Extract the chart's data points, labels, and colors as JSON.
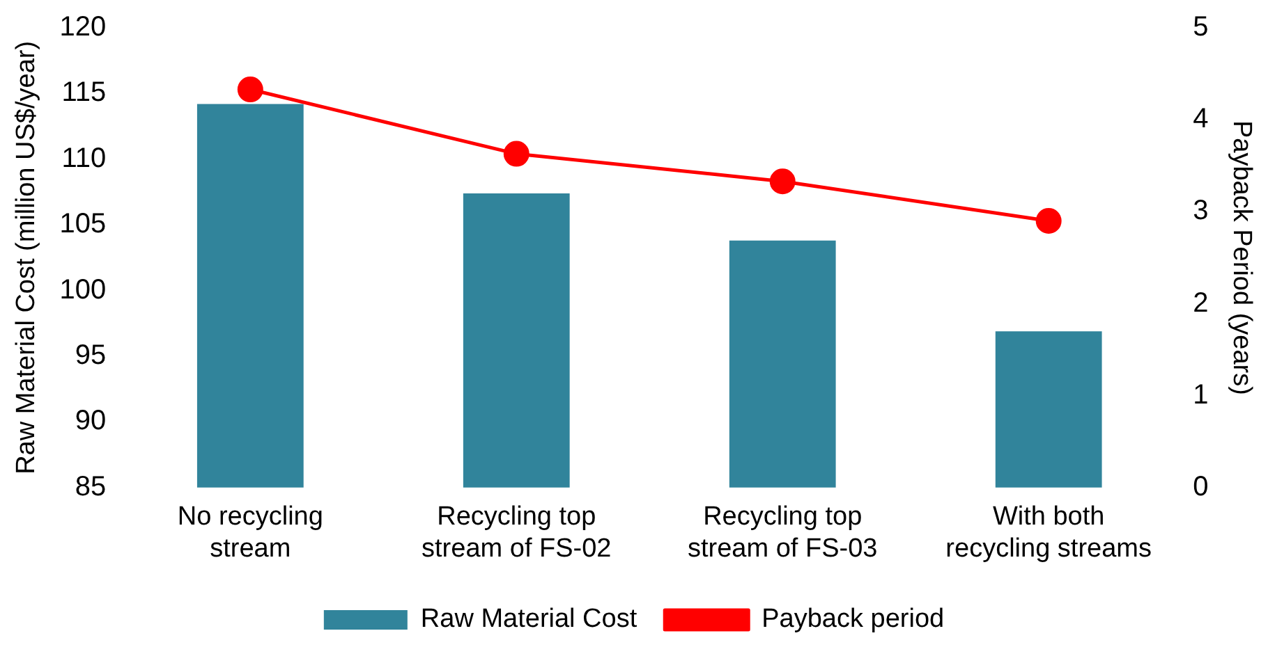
{
  "chart_data": {
    "type": "bar",
    "categories": [
      "No recycling\nstream",
      "Recycling top\nstream of FS-02",
      "Recycling top\nstream of FS-03",
      "With both\nrecycling streams"
    ],
    "series": [
      {
        "name": "Raw Material Cost",
        "color": "#31849b",
        "values": [
          114.2,
          107.4,
          103.8,
          96.9
        ]
      },
      {
        "name": "Payback period",
        "type": "line",
        "axis": "y2",
        "color": "#ff0000",
        "values": [
          4.33,
          3.63,
          3.33,
          2.9
        ]
      }
    ],
    "ylabel": "Raw Material Cost (million US$/year)",
    "y2label": "Payback Period (years)",
    "ylim": [
      85,
      120
    ],
    "yticks": [
      85,
      90,
      95,
      100,
      105,
      110,
      115,
      120
    ],
    "y2lim": [
      0,
      5
    ],
    "y2ticks": [
      0,
      1,
      2,
      3,
      4,
      5
    ],
    "grid": false,
    "legend": "bottom",
    "marker": "circle"
  }
}
